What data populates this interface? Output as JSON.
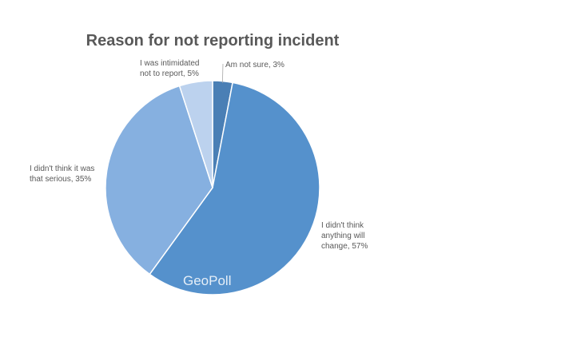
{
  "chart_data": {
    "type": "pie",
    "title": "Reason for not reporting incident",
    "slices": [
      {
        "label": "Am not sure",
        "value": 3,
        "label_lines": [
          "Am not sure, 3%"
        ],
        "color": "#4a7fb5"
      },
      {
        "label": "I didn't think anything will change",
        "value": 57,
        "label_lines": [
          "I didn't think",
          "anything will",
          "change, 57%"
        ],
        "color": "#5591cc"
      },
      {
        "label": "I didn't think it was that serious",
        "value": 35,
        "label_lines": [
          "I didn't think it was",
          "that serious, 35%"
        ],
        "color": "#86b0e0"
      },
      {
        "label": "I was intimidated not to report",
        "value": 5,
        "label_lines": [
          "I was intimidated",
          "not to report, 5%"
        ],
        "color": "#bcd2ee"
      }
    ],
    "watermark": "GeoPoll"
  }
}
